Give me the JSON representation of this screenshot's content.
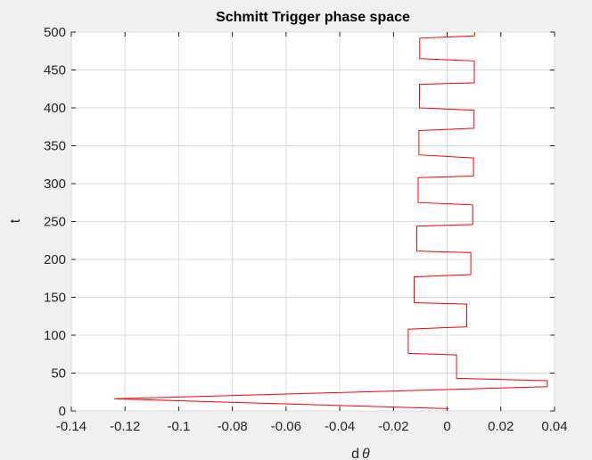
{
  "chart_data": {
    "type": "line",
    "title": "Schmitt Trigger phase space",
    "xlabel": "d",
    "xlabel_symbol": "θ",
    "ylabel": "t",
    "xlim": [
      -0.14,
      0.04
    ],
    "ylim": [
      0,
      500
    ],
    "xticks": [
      -0.14,
      -0.12,
      -0.1,
      -0.08,
      -0.06,
      -0.04,
      -0.02,
      0,
      0.02,
      0.04
    ],
    "xtick_labels": [
      "-0.14",
      "-0.12",
      "-0.1",
      "-0.08",
      "-0.06",
      "-0.04",
      "-0.02",
      "0",
      "0.02",
      "0.04"
    ],
    "yticks": [
      0,
      50,
      100,
      150,
      200,
      250,
      300,
      350,
      400,
      450,
      500
    ],
    "ytick_labels": [
      "0",
      "50",
      "100",
      "150",
      "200",
      "250",
      "300",
      "350",
      "400",
      "450",
      "500"
    ],
    "grid": true,
    "line_color": "#ff0000",
    "series": [
      {
        "x": [
          0.0005,
          -0.124,
          0.0373,
          0.0373,
          0.0035,
          0.0035,
          -0.0145,
          -0.0145,
          0.0073,
          0.0073,
          -0.0123,
          -0.0123,
          0.0088,
          0.0088,
          -0.0113,
          -0.0113,
          0.0095,
          0.0095,
          -0.0108,
          -0.0108,
          0.0098,
          0.0098,
          -0.0105,
          -0.0105,
          0.01,
          0.01,
          -0.0103,
          -0.0103,
          0.0101,
          0.0101,
          -0.0102,
          -0.0102,
          0.0102,
          0.0102
        ],
        "y": [
          3,
          16,
          32,
          40,
          43,
          74,
          76,
          108,
          111,
          141,
          143,
          177,
          180,
          209,
          211,
          244,
          246,
          272,
          275,
          308,
          310,
          334,
          338,
          370,
          373,
          397,
          400,
          431,
          433,
          462,
          465,
          492,
          495,
          500
        ]
      }
    ]
  }
}
